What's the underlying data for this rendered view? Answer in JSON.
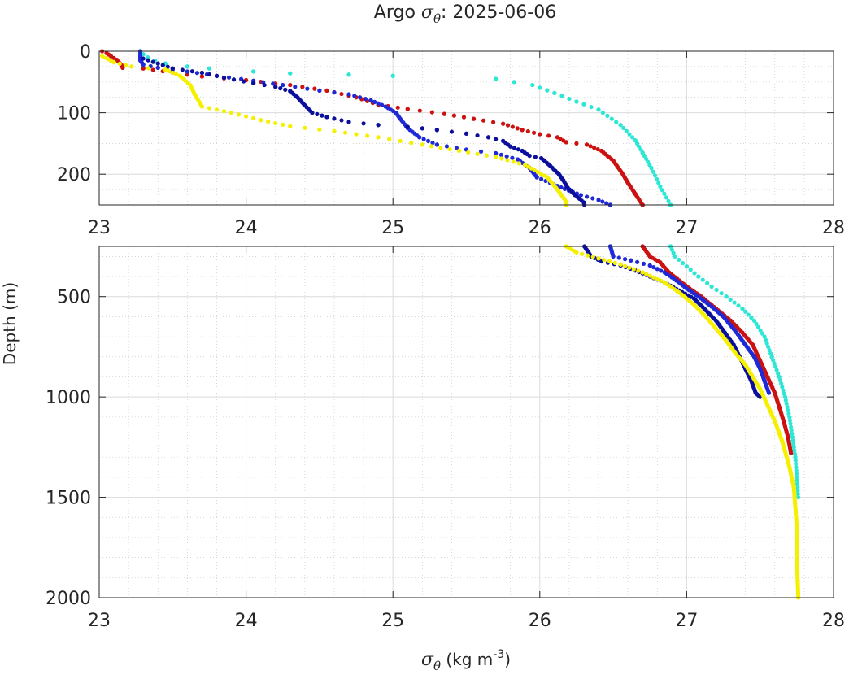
{
  "chart_data": {
    "type": "scatter",
    "title_prefix": "Argo ",
    "title_symbol": "σ",
    "title_subscript": "θ",
    "title_suffix": ": 2025-06-06",
    "xlabel_symbol": "σ",
    "xlabel_subscript": "θ",
    "xlabel_units": " (kg m",
    "xlabel_units_exp": "-3",
    "xlabel_units_close": ")",
    "ylabel": "Depth (m)",
    "xlim": [
      23,
      28
    ],
    "x_ticks": [
      "23",
      "24",
      "25",
      "26",
      "27",
      "28"
    ],
    "panels": [
      {
        "name": "upper",
        "ylim": [
          0,
          250
        ],
        "y_ticks": [
          0,
          100,
          200
        ],
        "y_tick_labels": [
          "0",
          "100",
          "200"
        ],
        "y_minor_ticks": [
          0,
          25,
          50,
          75,
          100,
          125,
          150,
          175,
          200,
          225,
          250
        ]
      },
      {
        "name": "lower",
        "ylim": [
          250,
          2000
        ],
        "y_ticks": [
          500,
          1000,
          1500,
          2000
        ],
        "y_tick_labels": [
          "500",
          "1000",
          "1500",
          "2000"
        ],
        "y_minor_ticks": [
          300,
          400,
          500,
          600,
          700,
          800,
          900,
          1000,
          1100,
          1200,
          1300,
          1400,
          1500,
          1600,
          1700,
          1800,
          1900,
          2000
        ]
      }
    ],
    "series": [
      {
        "name": "cyan",
        "color": "#2ee6d6",
        "min_dz": 6,
        "points": [
          [
            23.28,
            0
          ],
          [
            23.3,
            5
          ],
          [
            23.33,
            10
          ],
          [
            23.38,
            15
          ],
          [
            23.45,
            20
          ],
          [
            23.6,
            25
          ],
          [
            23.75,
            28
          ],
          [
            24.05,
            33
          ],
          [
            24.3,
            36
          ],
          [
            24.7,
            38
          ],
          [
            25.0,
            40
          ],
          [
            25.7,
            45
          ],
          [
            25.95,
            55
          ],
          [
            26.1,
            68
          ],
          [
            26.25,
            82
          ],
          [
            26.4,
            95
          ],
          [
            26.55,
            120
          ],
          [
            26.65,
            145
          ],
          [
            26.7,
            165
          ],
          [
            26.76,
            190
          ],
          [
            26.82,
            220
          ],
          [
            26.89,
            250
          ],
          [
            26.92,
            300
          ],
          [
            27.0,
            350
          ],
          [
            27.08,
            400
          ],
          [
            27.17,
            450
          ],
          [
            27.27,
            500
          ],
          [
            27.38,
            560
          ],
          [
            27.46,
            620
          ],
          [
            27.53,
            700
          ],
          [
            27.58,
            800
          ],
          [
            27.63,
            900
          ],
          [
            27.67,
            1000
          ],
          [
            27.7,
            1100
          ],
          [
            27.72,
            1200
          ],
          [
            27.74,
            1300
          ],
          [
            27.75,
            1400
          ],
          [
            27.76,
            1500
          ]
        ]
      },
      {
        "name": "red",
        "color": "#cc1111",
        "min_dz": 3,
        "points": [
          [
            23.02,
            0
          ],
          [
            23.05,
            3
          ],
          [
            23.08,
            8
          ],
          [
            23.12,
            14
          ],
          [
            23.15,
            22
          ],
          [
            23.16,
            27
          ],
          [
            23.3,
            28
          ],
          [
            23.5,
            35
          ],
          [
            23.7,
            41
          ],
          [
            24.0,
            47
          ],
          [
            24.3,
            55
          ],
          [
            24.55,
            64
          ],
          [
            24.75,
            75
          ],
          [
            24.9,
            87
          ],
          [
            25.1,
            94
          ],
          [
            25.35,
            102
          ],
          [
            25.55,
            110
          ],
          [
            25.75,
            118
          ],
          [
            25.88,
            128
          ],
          [
            26.0,
            135
          ],
          [
            26.12,
            140
          ],
          [
            26.18,
            148
          ],
          [
            26.32,
            152
          ],
          [
            26.42,
            162
          ],
          [
            26.5,
            178
          ],
          [
            26.56,
            198
          ],
          [
            26.6,
            214
          ],
          [
            26.65,
            232
          ],
          [
            26.7,
            250
          ],
          [
            26.75,
            300
          ],
          [
            26.82,
            330
          ],
          [
            26.88,
            380
          ],
          [
            26.95,
            420
          ],
          [
            27.02,
            460
          ],
          [
            27.1,
            500
          ],
          [
            27.2,
            560
          ],
          [
            27.3,
            620
          ],
          [
            27.38,
            680
          ],
          [
            27.45,
            740
          ],
          [
            27.5,
            820
          ],
          [
            27.55,
            900
          ],
          [
            27.6,
            980
          ],
          [
            27.63,
            1050
          ],
          [
            27.66,
            1120
          ],
          [
            27.69,
            1200
          ],
          [
            27.71,
            1280
          ]
        ]
      },
      {
        "name": "blue",
        "color": "#1f2ad6",
        "min_dz": 3,
        "points": [
          [
            23.28,
            0
          ],
          [
            23.28,
            8
          ],
          [
            23.28,
            15
          ],
          [
            23.3,
            22
          ],
          [
            23.4,
            27
          ],
          [
            23.6,
            33
          ],
          [
            23.8,
            40
          ],
          [
            24.05,
            48
          ],
          [
            24.25,
            55
          ],
          [
            24.5,
            64
          ],
          [
            24.7,
            70
          ],
          [
            24.85,
            80
          ],
          [
            24.95,
            90
          ],
          [
            25.02,
            100
          ],
          [
            25.05,
            110
          ],
          [
            25.1,
            125
          ],
          [
            25.18,
            140
          ],
          [
            25.3,
            152
          ],
          [
            25.5,
            160
          ],
          [
            25.7,
            166
          ],
          [
            25.85,
            176
          ],
          [
            25.93,
            190
          ],
          [
            25.98,
            205
          ],
          [
            26.07,
            214
          ],
          [
            26.17,
            224
          ],
          [
            26.28,
            234
          ],
          [
            26.4,
            242
          ],
          [
            26.48,
            250
          ],
          [
            26.5,
            300
          ],
          [
            26.62,
            320
          ],
          [
            26.75,
            345
          ],
          [
            26.85,
            380
          ],
          [
            26.93,
            420
          ],
          [
            27.0,
            460
          ],
          [
            27.08,
            500
          ],
          [
            27.17,
            550
          ],
          [
            27.25,
            600
          ],
          [
            27.33,
            670
          ],
          [
            27.4,
            740
          ],
          [
            27.46,
            800
          ],
          [
            27.5,
            860
          ],
          [
            27.53,
            920
          ],
          [
            27.56,
            980
          ]
        ]
      },
      {
        "name": "navy",
        "color": "#0b0f9c",
        "min_dz": 3,
        "points": [
          [
            23.3,
            12
          ],
          [
            23.5,
            28
          ],
          [
            23.7,
            35
          ],
          [
            23.85,
            43
          ],
          [
            24.05,
            52
          ],
          [
            24.2,
            58
          ],
          [
            24.3,
            65
          ],
          [
            24.35,
            75
          ],
          [
            24.4,
            88
          ],
          [
            24.45,
            100
          ],
          [
            24.55,
            107
          ],
          [
            24.7,
            115
          ],
          [
            24.9,
            120
          ],
          [
            25.1,
            123
          ],
          [
            25.3,
            128
          ],
          [
            25.5,
            134
          ],
          [
            25.65,
            140
          ],
          [
            25.75,
            146
          ],
          [
            25.8,
            155
          ],
          [
            25.88,
            162
          ],
          [
            25.93,
            170
          ],
          [
            26.01,
            174
          ],
          [
            26.06,
            184
          ],
          [
            26.13,
            200
          ],
          [
            26.16,
            210
          ],
          [
            26.19,
            222
          ],
          [
            26.24,
            234
          ],
          [
            26.3,
            246
          ],
          [
            26.35,
            300
          ],
          [
            26.42,
            325
          ],
          [
            26.55,
            345
          ],
          [
            26.65,
            370
          ],
          [
            26.75,
            400
          ],
          [
            26.85,
            430
          ],
          [
            26.95,
            470
          ],
          [
            27.05,
            510
          ],
          [
            27.12,
            560
          ],
          [
            27.2,
            620
          ],
          [
            27.26,
            680
          ],
          [
            27.32,
            740
          ],
          [
            27.36,
            800
          ],
          [
            27.4,
            860
          ],
          [
            27.44,
            920
          ],
          [
            27.47,
            980
          ],
          [
            27.5,
            1000
          ]
        ]
      },
      {
        "name": "yellow",
        "color": "#f5f000",
        "min_dz": 3,
        "points": [
          [
            23.02,
            8
          ],
          [
            23.1,
            18
          ],
          [
            23.22,
            25
          ],
          [
            23.45,
            30
          ],
          [
            23.55,
            40
          ],
          [
            23.62,
            55
          ],
          [
            23.65,
            70
          ],
          [
            23.7,
            90
          ],
          [
            23.9,
            100
          ],
          [
            24.1,
            112
          ],
          [
            24.3,
            122
          ],
          [
            24.6,
            130
          ],
          [
            24.9,
            140
          ],
          [
            25.2,
            152
          ],
          [
            25.45,
            162
          ],
          [
            25.7,
            172
          ],
          [
            25.9,
            185
          ],
          [
            26.05,
            205
          ],
          [
            26.12,
            225
          ],
          [
            26.18,
            245
          ],
          [
            26.18,
            250
          ],
          [
            26.25,
            280
          ],
          [
            26.4,
            310
          ],
          [
            26.55,
            340
          ],
          [
            26.7,
            380
          ],
          [
            26.85,
            430
          ],
          [
            26.95,
            480
          ],
          [
            27.05,
            540
          ],
          [
            27.13,
            600
          ],
          [
            27.2,
            660
          ],
          [
            27.27,
            720
          ],
          [
            27.33,
            780
          ],
          [
            27.4,
            840
          ],
          [
            27.45,
            900
          ],
          [
            27.5,
            960
          ],
          [
            27.55,
            1040
          ],
          [
            27.6,
            1120
          ],
          [
            27.65,
            1220
          ],
          [
            27.7,
            1350
          ],
          [
            27.73,
            1450
          ],
          [
            27.74,
            1550
          ],
          [
            27.75,
            1650
          ],
          [
            27.75,
            1800
          ],
          [
            27.76,
            2000
          ]
        ]
      }
    ]
  }
}
